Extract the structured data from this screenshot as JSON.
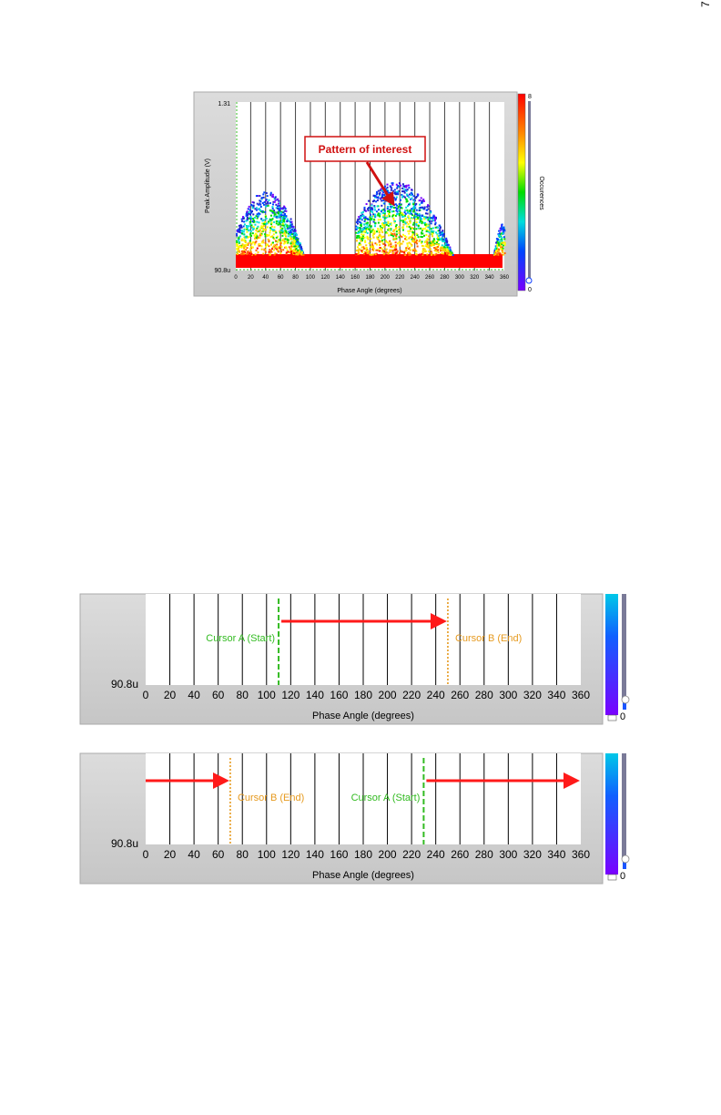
{
  "page_number": "7",
  "chart_data": [
    {
      "type": "heatmap",
      "ylabel": "Peak Amplitude (V)",
      "xlabel": "Phase Angle (degrees)",
      "ymax_label": "1.31",
      "ymin_label": "90.8u",
      "x_ticks": [
        0,
        20,
        40,
        60,
        80,
        100,
        120,
        140,
        160,
        180,
        200,
        220,
        240,
        260,
        280,
        300,
        320,
        340,
        360
      ],
      "xlim": [
        0,
        360
      ],
      "colorbar": {
        "label": "Occurences",
        "max_label": "8",
        "min_label": "0"
      },
      "annotation": "Pattern of interest",
      "colors": {
        "red": "#ff0000",
        "annotation": "#d01010"
      }
    },
    {
      "type": "line",
      "xlabel": "Phase Angle (degrees)",
      "ymin_label": "90.8u",
      "x_ticks": [
        0,
        20,
        40,
        60,
        80,
        100,
        120,
        140,
        160,
        180,
        200,
        220,
        240,
        260,
        280,
        300,
        320,
        340,
        360
      ],
      "xlim": [
        0,
        360
      ],
      "colorbar_min_label": "0",
      "cursors": [
        {
          "name": "Cursor A (Start)",
          "x": 110,
          "color": "#33bb22",
          "style": "dashed"
        },
        {
          "name": "Cursor B (End)",
          "x": 250,
          "color": "#e69a1f",
          "style": "dotted"
        }
      ],
      "arrows": [
        {
          "from": 110,
          "to": 250
        }
      ]
    },
    {
      "type": "line",
      "xlabel": "Phase Angle (degrees)",
      "ymin_label": "90.8u",
      "x_ticks": [
        0,
        20,
        40,
        60,
        80,
        100,
        120,
        140,
        160,
        180,
        200,
        220,
        240,
        260,
        280,
        300,
        320,
        340,
        360
      ],
      "xlim": [
        0,
        360
      ],
      "colorbar_min_label": "0",
      "cursors": [
        {
          "name": "Cursor B (End)",
          "x": 70,
          "color": "#e69a1f",
          "style": "dotted"
        },
        {
          "name": "Cursor A (Start)",
          "x": 230,
          "color": "#33bb22",
          "style": "dashed"
        }
      ],
      "arrows": [
        {
          "from": 0,
          "to": 70
        },
        {
          "from": 230,
          "to": 360
        }
      ]
    }
  ]
}
